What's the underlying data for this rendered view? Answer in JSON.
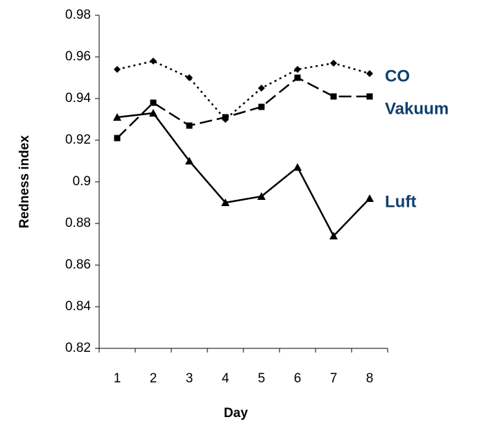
{
  "chart_data": {
    "type": "line",
    "x_label": "Day",
    "y_label": "Redness index",
    "categories": [
      "1",
      "2",
      "3",
      "4",
      "5",
      "6",
      "7",
      "8"
    ],
    "series": [
      {
        "name": "CO",
        "color": "#000000",
        "dash": "dotted",
        "marker": "diamond",
        "values": [
          0.954,
          0.958,
          0.95,
          0.93,
          0.945,
          0.954,
          0.957,
          0.952
        ]
      },
      {
        "name": "Vakuum",
        "color": "#000000",
        "dash": "dashed",
        "marker": "square",
        "values": [
          0.921,
          0.938,
          0.927,
          0.931,
          0.936,
          0.95,
          0.941,
          0.941
        ]
      },
      {
        "name": "Luft",
        "color": "#000000",
        "dash": "solid",
        "marker": "triangle",
        "values": [
          0.931,
          0.933,
          0.91,
          0.89,
          0.893,
          0.907,
          0.874,
          0.892
        ]
      }
    ],
    "ylim": [
      0.82,
      0.98
    ],
    "yticks": [
      0.82,
      0.84,
      0.86,
      0.88,
      0.9,
      0.92,
      0.94,
      0.96,
      0.98
    ],
    "grid": false
  }
}
